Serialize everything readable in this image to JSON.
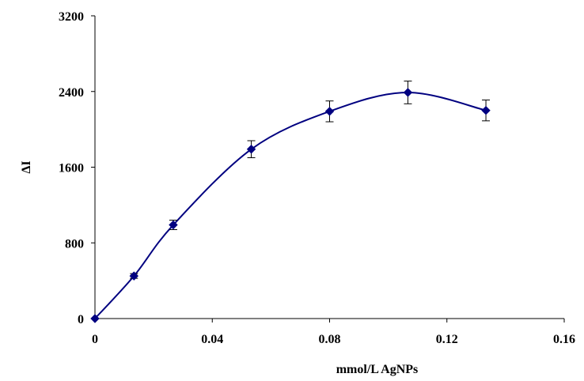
{
  "chart_data": {
    "type": "line",
    "title": "",
    "xlabel": "mmol/L AgNPs",
    "ylabel": "ΔI",
    "xlim": [
      0,
      0.16
    ],
    "ylim": [
      0,
      3200
    ],
    "x_ticks": [
      0,
      0.04,
      0.08,
      0.12,
      0.16
    ],
    "y_ticks": [
      0,
      800,
      1600,
      2400,
      3200
    ],
    "x_tick_labels": [
      "0",
      "0.04",
      "0.08",
      "0.12",
      "0.16"
    ],
    "y_tick_labels": [
      "0",
      "800",
      "1600",
      "2400",
      "3200"
    ],
    "grid": false,
    "legend": "none",
    "smooth": true,
    "marker": "diamond",
    "series": [
      {
        "color": "#000080",
        "x": [
          0,
          0.0133,
          0.0267,
          0.0533,
          0.08,
          0.1067,
          0.1333
        ],
        "y": [
          0,
          450,
          990,
          1790,
          2190,
          2390,
          2200
        ],
        "error": [
          0,
          25,
          50,
          90,
          110,
          120,
          110
        ]
      }
    ]
  }
}
